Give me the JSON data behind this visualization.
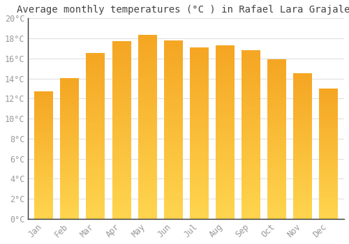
{
  "title": "Average monthly temperatures (°C ) in Rafael Lara Grajales",
  "months": [
    "Jan",
    "Feb",
    "Mar",
    "Apr",
    "May",
    "Jun",
    "Jul",
    "Aug",
    "Sep",
    "Oct",
    "Nov",
    "Dec"
  ],
  "values": [
    12.7,
    14.0,
    16.5,
    17.7,
    18.3,
    17.8,
    17.1,
    17.3,
    16.8,
    15.9,
    14.5,
    13.0
  ],
  "bar_color_bottom": "#FFD54F",
  "bar_color_top": "#F5A623",
  "background_color": "#FFFFFF",
  "grid_color": "#E0E0E0",
  "text_color": "#999999",
  "spine_color": "#333333",
  "ylim": [
    0,
    20
  ],
  "ytick_step": 2,
  "title_fontsize": 10,
  "tick_fontsize": 8.5
}
